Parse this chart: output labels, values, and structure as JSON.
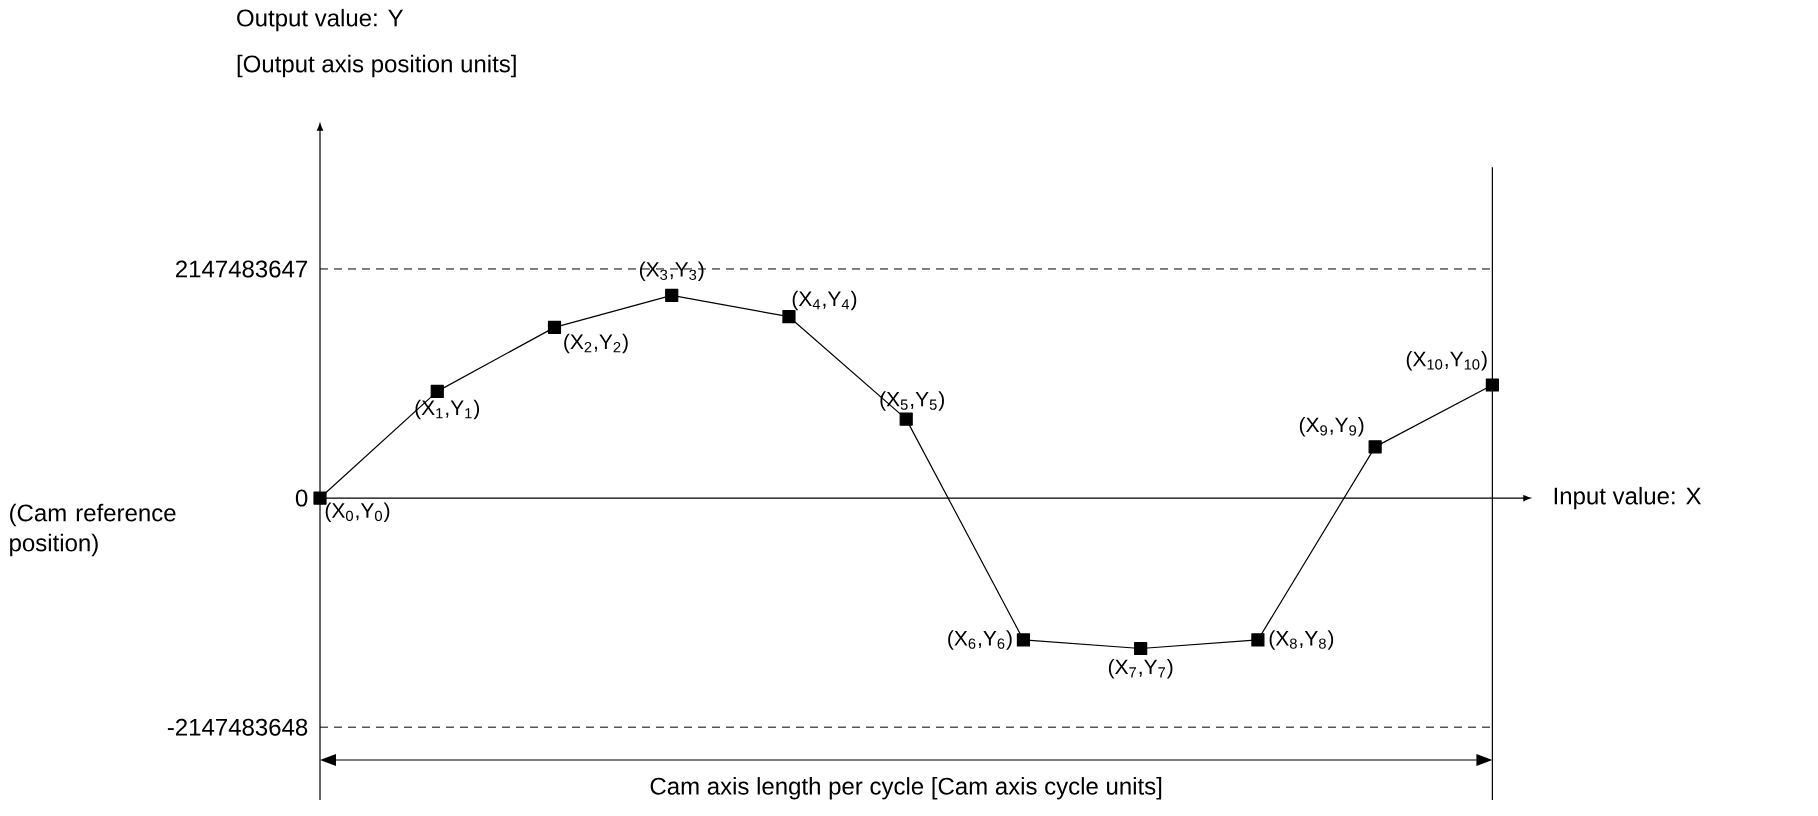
{
  "chart_data": {
    "type": "line",
    "xlabel": "Input value: X",
    "ylabel": "Output value: Y",
    "categories": [
      null,
      null,
      null,
      null,
      null,
      null,
      null,
      null,
      null,
      null,
      null
    ],
    "values": [
      0,
      1000000000.0,
      1600000000.0,
      1900000000.0,
      1700000000.0,
      740000000.0,
      -1330000000.0,
      -1410000000.0,
      -1330000000.0,
      480000000.0,
      1060000000.0
    ],
    "color": "#000000",
    "marker": "square",
    "line_style": "solid",
    "ylim": [
      -2830000000,
      3450000000
    ],
    "yticks": [
      -2147483648,
      0,
      2147483647
    ],
    "tick_labels": "y",
    "ref_lines": [
      {
        "axis": "y",
        "value": 2147483647,
        "line_style": "dashed",
        "color": "#000000"
      },
      {
        "axis": "y",
        "value": -2147483648,
        "line_style": "dashed",
        "color": "#000000"
      }
    ],
    "annotations": [
      "(X$_{0}$,Y$_{0}$)",
      "(X$_{1}$,Y$_{1}$)",
      "(X$_{2}$,Y$_{2}$)",
      "(X$_{3}$,Y$_{3}$)",
      "(X$_{4}$,Y$_{4}$)",
      "(X$_{5}$,Y$_{5}$)",
      "(X$_{6}$,Y$_{6}$)",
      "(X$_{7}$,Y$_{7}$)",
      "(X$_{8}$,Y$_{8}$)",
      "(X$_{9}$,Y$_{9}$)",
      "(X$_{10}$,Y$_{10}$)",
      "[Output axis position units]",
      "(Cam reference position)",
      "Cam axis length per cycle [Cam axis cycle units]"
    ]
  }
}
